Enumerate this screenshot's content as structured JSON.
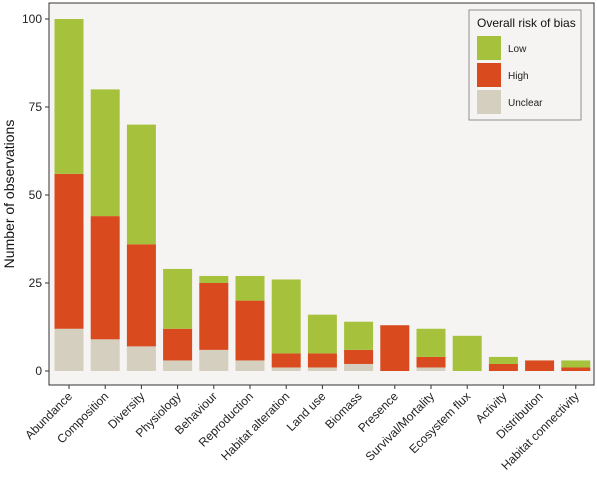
{
  "chart_data": {
    "type": "bar",
    "stacked": true,
    "categories": [
      "Abundance",
      "Composition",
      "Diversity",
      "Physiology",
      "Behaviour",
      "Reproduction",
      "Habitat alteration",
      "Land use",
      "Biomass",
      "Presence",
      "Survival/Mortality",
      "Ecosystem flux",
      "Activity",
      "Distribution",
      "Habitat connectivity"
    ],
    "series": [
      {
        "name": "Unclear",
        "color": "#d5cfbf",
        "values": [
          12,
          9,
          7,
          3,
          6,
          3,
          1,
          1,
          2,
          0,
          1,
          0,
          0,
          0,
          0
        ]
      },
      {
        "name": "High",
        "color": "#d94a1e",
        "values": [
          44,
          35,
          29,
          9,
          19,
          17,
          4,
          4,
          4,
          13,
          3,
          0,
          2,
          3,
          1
        ]
      },
      {
        "name": "Low",
        "color": "#a6c23c",
        "values": [
          44,
          36,
          34,
          17,
          2,
          7,
          21,
          11,
          8,
          0,
          8,
          10,
          2,
          0,
          2
        ]
      }
    ],
    "title": "",
    "xlabel": "",
    "ylabel": "Number of observations",
    "ylim": [
      0,
      100
    ],
    "yticks": [
      0,
      25,
      50,
      75,
      100
    ],
    "grid": false,
    "legend": {
      "title": "Overall risk of bias",
      "placement": "top-right",
      "entries": [
        "Low",
        "High",
        "Unclear"
      ]
    },
    "panel_background": "#f5f4f2"
  }
}
